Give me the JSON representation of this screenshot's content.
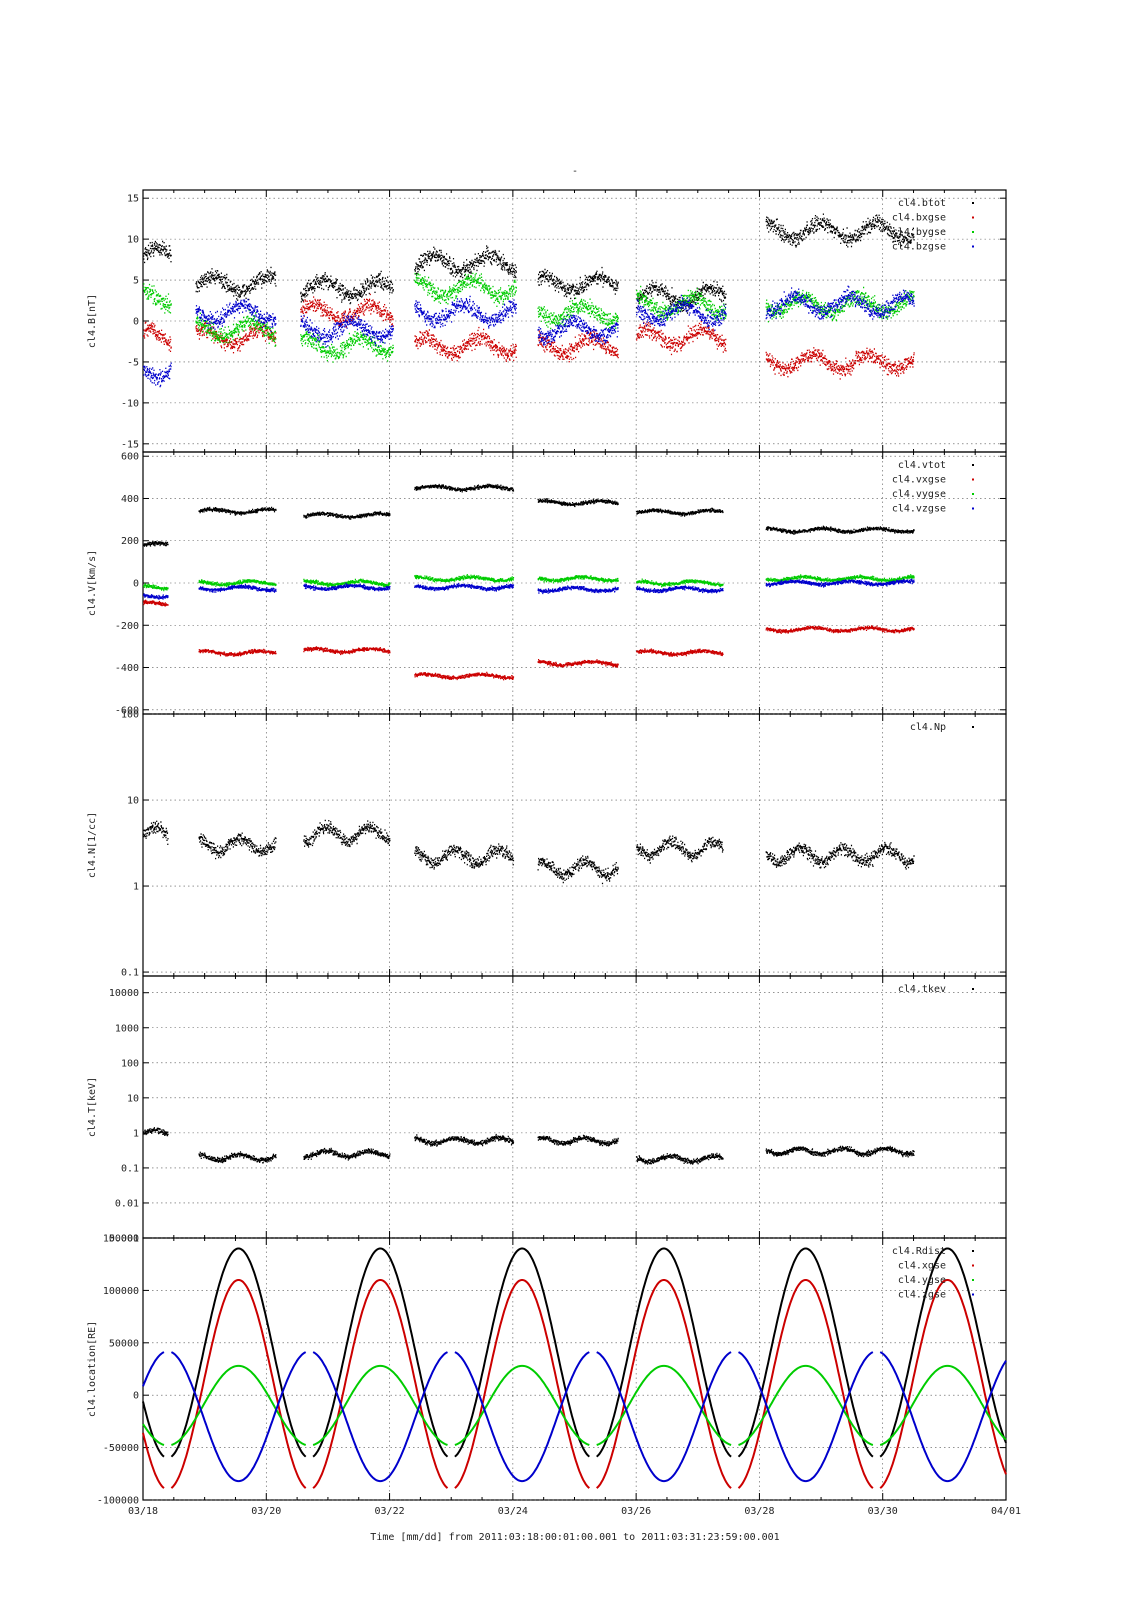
{
  "figure": {
    "top_mark": "-",
    "x_ticks": [
      "03/18",
      "03/20",
      "03/22",
      "03/24",
      "03/26",
      "03/28",
      "03/30",
      "04/01"
    ],
    "footer": "Time [mm/dd]  from 2011:03:18:00:01:00.001  to  2011:03:31:23:59:00.001"
  },
  "chart_data": [
    {
      "type": "scatter",
      "ylabel": "cl4.B[nT]",
      "ylim": [
        -16,
        16
      ],
      "yticks": [
        "15",
        "10",
        "5",
        "0",
        "-5",
        "-10",
        "-15"
      ],
      "xlim": [
        0,
        14
      ],
      "grid": true,
      "legend_position": "top-right",
      "series": [
        {
          "name": "cl4.btot",
          "color": "#000000"
        },
        {
          "name": "cl4.bxgse",
          "color": "#cc0000"
        },
        {
          "name": "cl4.bygse",
          "color": "#00cc00"
        },
        {
          "name": "cl4.bzgse",
          "color": "#0000cc"
        }
      ],
      "segments": [
        {
          "x": [
            0.0,
            0.45
          ],
          "btot": 8,
          "bx": -2,
          "by": 3,
          "bz": -6
        },
        {
          "x": [
            0.85,
            2.15
          ],
          "btot": 4.5,
          "bx": -2,
          "by": -1,
          "bz": 1
        },
        {
          "x": [
            2.55,
            4.05
          ],
          "btot": 4,
          "bx": 1,
          "by": -3,
          "bz": -1
        },
        {
          "x": [
            4.4,
            6.05
          ],
          "btot": 7,
          "bx": -3,
          "by": 4,
          "bz": 1
        },
        {
          "x": [
            6.4,
            7.7
          ],
          "btot": 4.5,
          "bx": -3,
          "by": 1,
          "bz": -1
        },
        {
          "x": [
            8.0,
            9.45
          ],
          "btot": 3,
          "bx": -2,
          "by": 2,
          "bz": 1
        },
        {
          "x": [
            10.1,
            12.5
          ],
          "btot": 11,
          "bx": -5,
          "by": 2,
          "bz": 2
        }
      ]
    },
    {
      "type": "scatter",
      "ylabel": "cl4.V[km/s]",
      "ylim": [
        -620,
        620
      ],
      "yticks": [
        "600",
        "400",
        "200",
        "0",
        "-200",
        "-400",
        "-600"
      ],
      "xlim": [
        0,
        14
      ],
      "grid": true,
      "legend_position": "top-right",
      "series": [
        {
          "name": "cl4.vtot",
          "color": "#000000"
        },
        {
          "name": "cl4.vxgse",
          "color": "#cc0000"
        },
        {
          "name": "cl4.vygse",
          "color": "#00cc00"
        },
        {
          "name": "cl4.vzgse",
          "color": "#0000cc"
        }
      ],
      "segments": [
        {
          "x": [
            0.0,
            0.4
          ],
          "vtot": 180,
          "vx": -100,
          "vy": -20,
          "vz": -60
        },
        {
          "x": [
            0.9,
            2.15
          ],
          "vtot": 340,
          "vx": -330,
          "vy": 0,
          "vz": -25
        },
        {
          "x": [
            2.6,
            4.0
          ],
          "vtot": 320,
          "vx": -320,
          "vy": 0,
          "vz": -20
        },
        {
          "x": [
            4.4,
            6.0
          ],
          "vtot": 450,
          "vx": -440,
          "vy": 20,
          "vz": -20
        },
        {
          "x": [
            6.4,
            7.7
          ],
          "vtot": 380,
          "vx": -380,
          "vy": 20,
          "vz": -30
        },
        {
          "x": [
            8.0,
            9.4
          ],
          "vtot": 335,
          "vx": -330,
          "vy": 0,
          "vz": -30
        },
        {
          "x": [
            10.1,
            12.5
          ],
          "vtot": 250,
          "vx": -220,
          "vy": 20,
          "vz": 0
        }
      ]
    },
    {
      "type": "scatter",
      "ylabel": "cl4.N[1/cc]",
      "yscale": "log",
      "ylim": [
        0.09,
        100
      ],
      "yticks": [
        "100",
        "10",
        "1",
        "0.1"
      ],
      "xlim": [
        0,
        14
      ],
      "grid": true,
      "legend_position": "top-right",
      "series": [
        {
          "name": "cl4.Np",
          "color": "#000000"
        }
      ],
      "segments": [
        {
          "x": [
            0.0,
            0.4
          ],
          "y": 4
        },
        {
          "x": [
            0.9,
            2.15
          ],
          "y": 3
        },
        {
          "x": [
            2.6,
            4.0
          ],
          "y": 4
        },
        {
          "x": [
            4.4,
            6.0
          ],
          "y": 2.2
        },
        {
          "x": [
            6.4,
            7.7
          ],
          "y": 1.6
        },
        {
          "x": [
            8.0,
            9.4
          ],
          "y": 2.7
        },
        {
          "x": [
            10.1,
            12.5
          ],
          "y": 2.3
        }
      ]
    },
    {
      "type": "scatter",
      "ylabel": "cl4.T[keV]",
      "yscale": "log",
      "ylim": [
        0.001,
        30000
      ],
      "yticks": [
        "10000",
        "1000",
        "100",
        "10",
        "1",
        "0.1",
        "0.01",
        "0.001"
      ],
      "xlim": [
        0,
        14
      ],
      "grid": true,
      "legend_position": "top-right",
      "series": [
        {
          "name": "cl4.tkev",
          "color": "#000000"
        }
      ],
      "segments": [
        {
          "x": [
            0.0,
            0.4
          ],
          "y": 1
        },
        {
          "x": [
            0.9,
            2.15
          ],
          "y": 0.2
        },
        {
          "x": [
            2.6,
            4.0
          ],
          "y": 0.25
        },
        {
          "x": [
            4.4,
            6.0
          ],
          "y": 0.6
        },
        {
          "x": [
            6.4,
            7.7
          ],
          "y": 0.6
        },
        {
          "x": [
            8.0,
            9.4
          ],
          "y": 0.18
        },
        {
          "x": [
            10.1,
            12.5
          ],
          "y": 0.3
        }
      ]
    },
    {
      "type": "line",
      "ylabel": "cl4.location[RE]",
      "ylim": [
        -100000,
        150000
      ],
      "yticks": [
        "150000",
        "100000",
        "50000",
        "0",
        "-50000",
        "-100000"
      ],
      "xlim": [
        0,
        14
      ],
      "xlabel": "Time [mm/dd]",
      "grid": true,
      "legend_position": "top-right",
      "orbit_period_days": 2.3,
      "orbit_apogee_day": 1.55,
      "series": [
        {
          "name": "cl4.Rdist",
          "color": "#000000",
          "mid": 40000,
          "amp": 100000
        },
        {
          "name": "cl4.xgse",
          "color": "#cc0000",
          "mid": 10000,
          "amp": 100000
        },
        {
          "name": "cl4.ygse",
          "color": "#00cc00",
          "mid": -10000,
          "amp": 38000
        },
        {
          "name": "cl4.zgse",
          "color": "#0000cc",
          "mid": -20000,
          "amp": -62000
        }
      ]
    }
  ]
}
